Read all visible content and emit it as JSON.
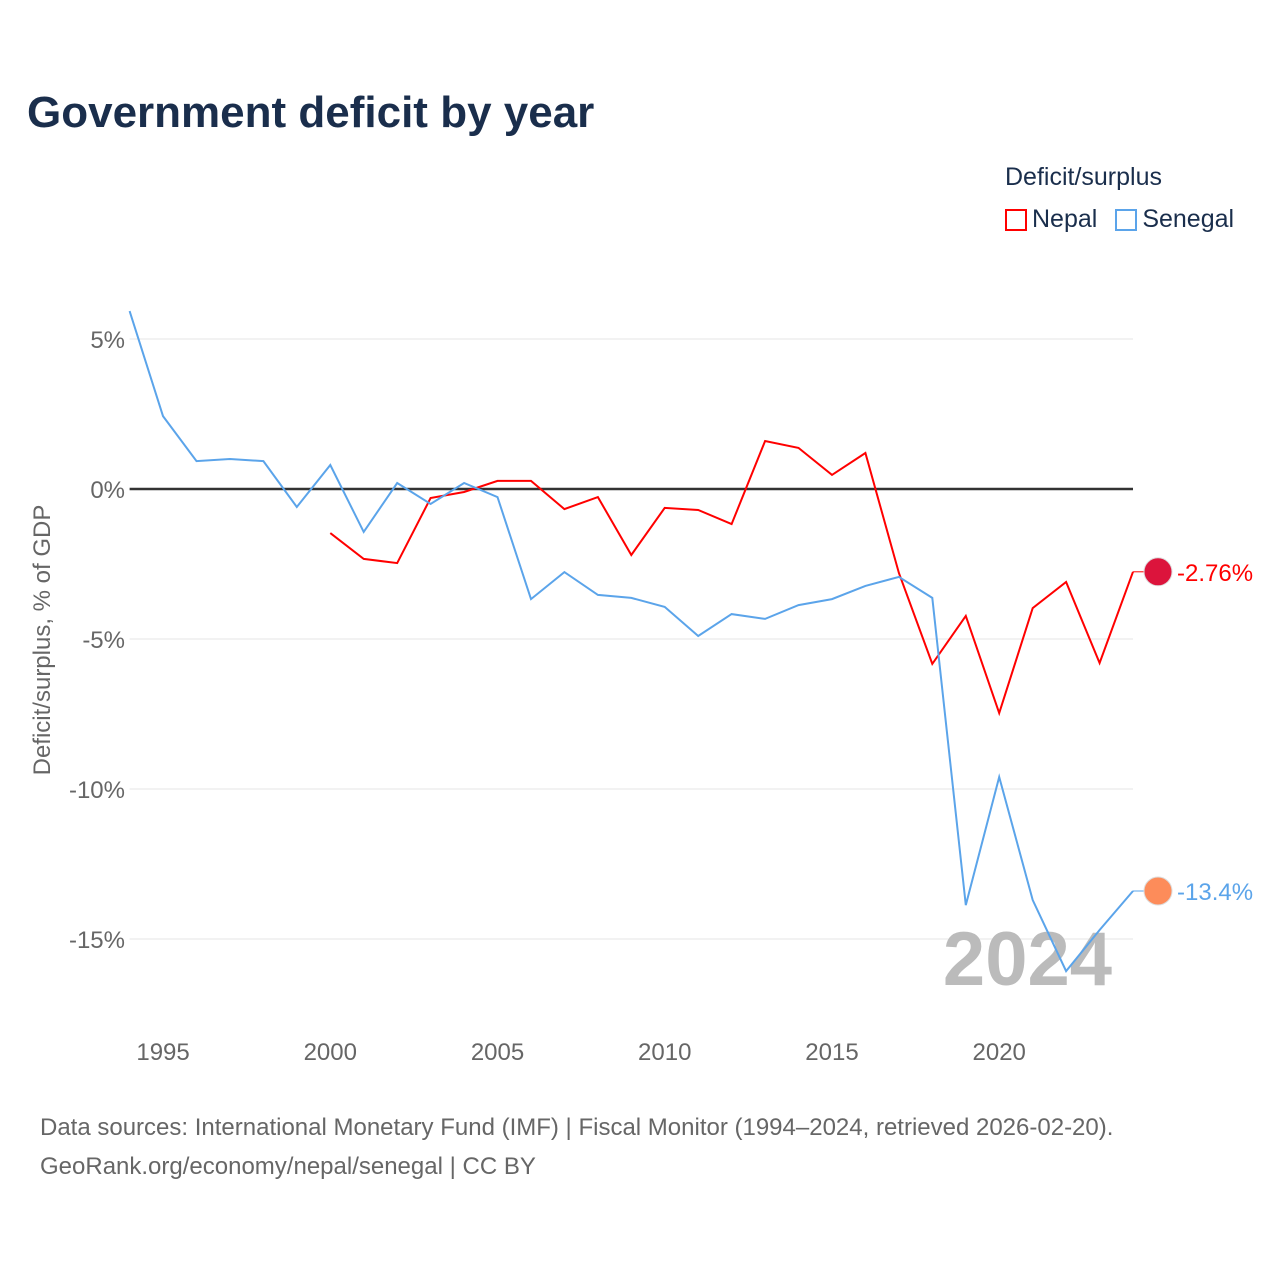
{
  "title": "Government deficit by year",
  "legend": {
    "title": "Deficit/surplus",
    "items": [
      {
        "name": "Nepal",
        "color": "#ff0000"
      },
      {
        "name": "Senegal",
        "color": "#5ba4ea"
      }
    ]
  },
  "source": {
    "line1": "Data sources: International Monetary Fund (IMF) | Fiscal Monitor (1994–2024, retrieved 2026-02-20).",
    "line2": "GeoRank.org/economy/nepal/senegal | CC BY"
  },
  "watermark_year": "2024",
  "chart_data": {
    "type": "line",
    "title": "Government deficit by year",
    "xlabel": "",
    "ylabel": "Deficit/surplus, % of GDP",
    "xlim": [
      1994,
      2024
    ],
    "ylim": [
      -17,
      6
    ],
    "xticks": [
      1995,
      2000,
      2005,
      2010,
      2015,
      2020
    ],
    "xtick_labels": [
      "1995",
      "2000",
      "2005",
      "2010",
      "2015",
      "2020"
    ],
    "yticks": [
      5,
      0,
      -5,
      -10,
      -15
    ],
    "ytick_labels": [
      "5%",
      "0%",
      "-5%",
      "-10%",
      "-15%"
    ],
    "grid": true,
    "legend_position": "top-right",
    "series": [
      {
        "name": "Nepal",
        "color": "#ff0000",
        "end_label": "-2.76%",
        "x": [
          2000,
          2001,
          2002,
          2003,
          2004,
          2005,
          2006,
          2007,
          2008,
          2009,
          2010,
          2011,
          2012,
          2013,
          2014,
          2015,
          2016,
          2017,
          2018,
          2019,
          2020,
          2021,
          2022,
          2023,
          2024
        ],
        "values": [
          -1.47,
          -2.33,
          -2.47,
          -0.3,
          -0.1,
          0.27,
          0.27,
          -0.67,
          -0.27,
          -2.2,
          -0.63,
          -0.7,
          -1.17,
          1.6,
          1.37,
          0.47,
          1.2,
          -2.8,
          -5.83,
          -4.23,
          -7.47,
          -3.97,
          -3.1,
          -5.8,
          -2.76
        ]
      },
      {
        "name": "Senegal",
        "color": "#5ba4ea",
        "end_label": "-13.4%",
        "x": [
          1994,
          1995,
          1996,
          1997,
          1998,
          1999,
          2000,
          2001,
          2002,
          2003,
          2004,
          2005,
          2006,
          2007,
          2008,
          2009,
          2010,
          2011,
          2012,
          2013,
          2014,
          2015,
          2016,
          2017,
          2018,
          2019,
          2020,
          2021,
          2022,
          2023,
          2024
        ],
        "values": [
          5.93,
          2.43,
          0.93,
          1.0,
          0.93,
          -0.6,
          0.8,
          -1.43,
          0.2,
          -0.5,
          0.2,
          -0.27,
          -3.67,
          -2.77,
          -3.53,
          -3.63,
          -3.93,
          -4.9,
          -4.17,
          -4.33,
          -3.87,
          -3.67,
          -3.23,
          -2.93,
          -3.63,
          -13.87,
          -9.6,
          -13.7,
          -16.07,
          -14.7,
          -13.4
        ]
      }
    ]
  }
}
